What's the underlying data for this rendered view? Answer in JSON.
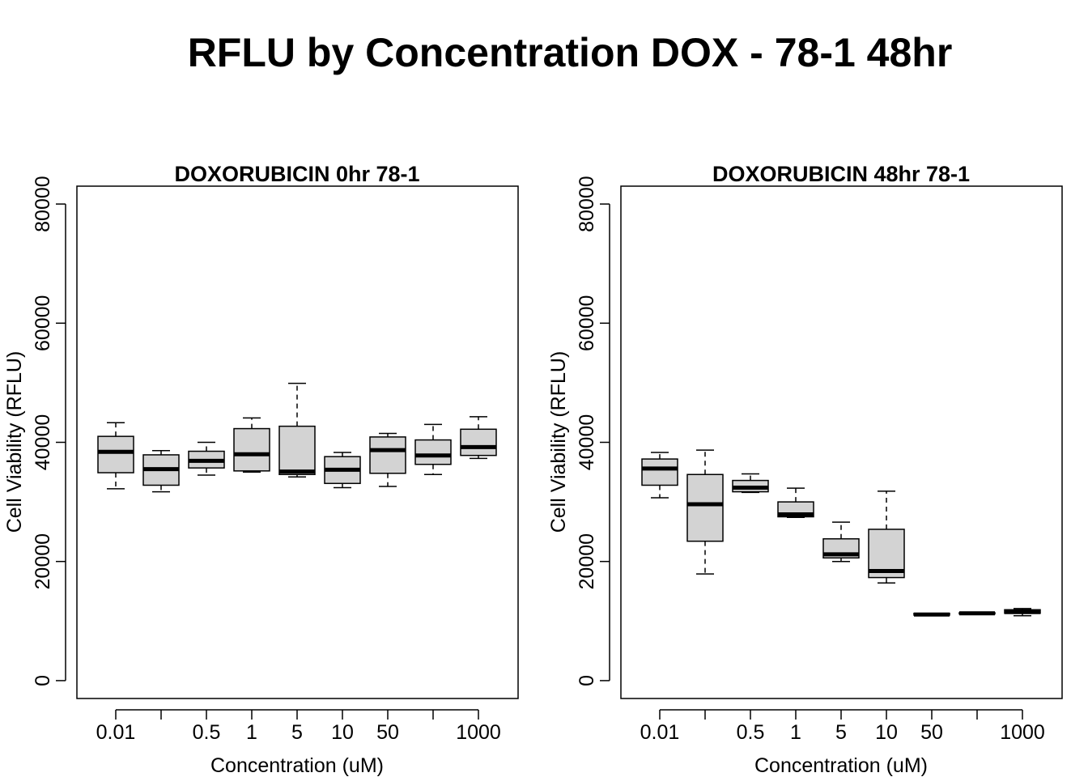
{
  "figure": {
    "title": "RFLU by Concentration DOX - 78-1 48hr"
  },
  "chart_data": [
    {
      "type": "boxplot",
      "title": "DOXORUBICIN 0hr 78-1",
      "xlabel": "Concentration (uM)",
      "ylabel": "Cell Viability (RFLU)",
      "ylim": [
        -3000,
        83000
      ],
      "yticks": [
        0,
        20000,
        40000,
        60000,
        80000
      ],
      "categories": [
        "0.01",
        "",
        "0.5",
        "1",
        "5",
        "10",
        "50",
        "",
        "1000"
      ],
      "boxes": [
        {
          "min": 32200,
          "q1": 34900,
          "median": 38400,
          "q3": 41000,
          "max": 43300
        },
        {
          "min": 31700,
          "q1": 32800,
          "median": 35500,
          "q3": 37900,
          "max": 38600
        },
        {
          "min": 34500,
          "q1": 35700,
          "median": 36900,
          "q3": 38500,
          "max": 40000
        },
        {
          "min": 35000,
          "q1": 35200,
          "median": 38000,
          "q3": 42300,
          "max": 44100
        },
        {
          "min": 34200,
          "q1": 34600,
          "median": 35100,
          "q3": 42700,
          "max": 49900
        },
        {
          "min": 32400,
          "q1": 33100,
          "median": 35400,
          "q3": 37600,
          "max": 38300
        },
        {
          "min": 32600,
          "q1": 34800,
          "median": 38700,
          "q3": 40900,
          "max": 41500
        },
        {
          "min": 34600,
          "q1": 36300,
          "median": 37800,
          "q3": 40400,
          "max": 43000
        },
        {
          "min": 37300,
          "q1": 37800,
          "median": 39200,
          "q3": 42200,
          "max": 44300
        }
      ],
      "grid": false
    },
    {
      "type": "boxplot",
      "title": "DOXORUBICIN 48hr 78-1",
      "xlabel": "Concentration (uM)",
      "ylabel": "Cell Viability (RFLU)",
      "ylim": [
        -3000,
        83000
      ],
      "yticks": [
        0,
        20000,
        40000,
        60000,
        80000
      ],
      "categories": [
        "0.01",
        "",
        "0.5",
        "1",
        "5",
        "10",
        "50",
        "",
        "1000"
      ],
      "boxes": [
        {
          "min": 30700,
          "q1": 32800,
          "median": 35600,
          "q3": 37200,
          "max": 38300
        },
        {
          "min": 17900,
          "q1": 23400,
          "median": 29600,
          "q3": 34600,
          "max": 38700
        },
        {
          "min": 31600,
          "q1": 31700,
          "median": 32400,
          "q3": 33600,
          "max": 34700
        },
        {
          "min": 27400,
          "q1": 27500,
          "median": 27900,
          "q3": 30000,
          "max": 32300
        },
        {
          "min": 20000,
          "q1": 20600,
          "median": 21200,
          "q3": 23800,
          "max": 26600
        },
        {
          "min": 16400,
          "q1": 17300,
          "median": 18400,
          "q3": 25400,
          "max": 31800
        },
        {
          "min": 11000,
          "q1": 11000,
          "median": 11100,
          "q3": 11300,
          "max": 11300
        },
        {
          "min": 11200,
          "q1": 11200,
          "median": 11300,
          "q3": 11400,
          "max": 11500
        },
        {
          "min": 10900,
          "q1": 11300,
          "median": 11500,
          "q3": 11900,
          "max": 12100
        }
      ],
      "grid": false
    }
  ]
}
